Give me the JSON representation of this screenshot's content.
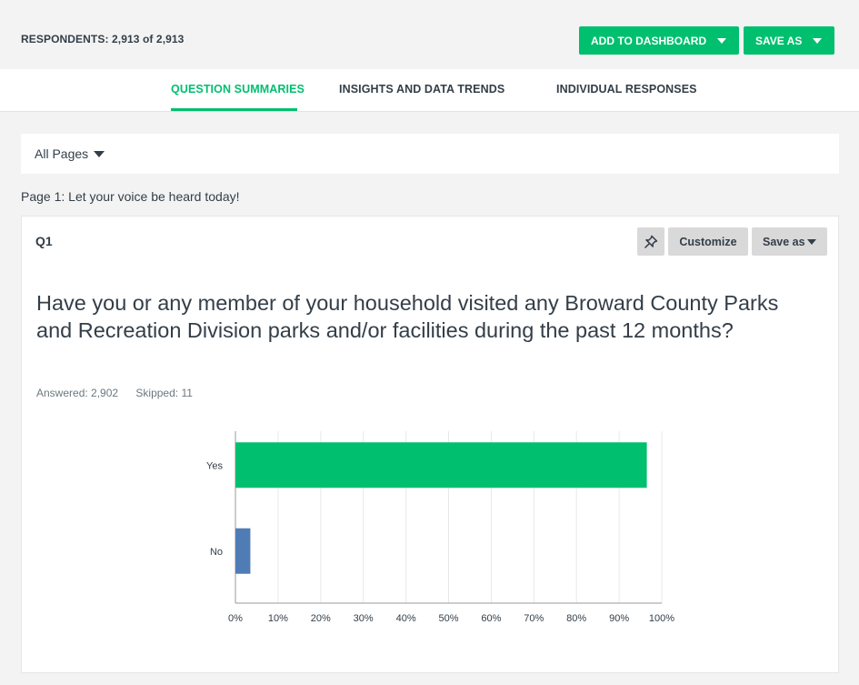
{
  "header": {
    "respondents_label": "RESPONDENTS:",
    "respondents_value": "2,913",
    "respondents_of": "of",
    "respondents_total": "2,913",
    "add_to_dashboard_label": "ADD TO DASHBOARD",
    "save_as_label": "SAVE AS"
  },
  "tabs": [
    {
      "label": "QUESTION SUMMARIES",
      "active": true
    },
    {
      "label": "INSIGHTS AND DATA TRENDS",
      "active": false
    },
    {
      "label": "INDIVIDUAL RESPONSES",
      "active": false
    }
  ],
  "pages_filter": {
    "selected": "All Pages"
  },
  "page_heading": "Page 1: Let your voice be heard today!",
  "question": {
    "number": "Q1",
    "customize_label": "Customize",
    "save_as_label": "Save as",
    "text": "Have you or any member of your household visited any Broward County Parks and Recreation Division parks and/or facilities during the past 12 months?",
    "answered": "Answered: 2,902",
    "skipped": "Skipped: 11"
  },
  "colors": {
    "accent": "#00bf6f",
    "no_bar": "#507cb6"
  },
  "chart_data": {
    "type": "bar",
    "orientation": "horizontal",
    "categories": [
      "Yes",
      "No"
    ],
    "values": [
      96.5,
      3.5
    ],
    "unit": "%",
    "xlim": [
      0,
      100
    ],
    "ticks": [
      "0%",
      "10%",
      "20%",
      "30%",
      "40%",
      "50%",
      "60%",
      "70%",
      "80%",
      "90%",
      "100%"
    ],
    "bar_colors": [
      "#00bf6f",
      "#507cb6"
    ],
    "grid": true
  }
}
